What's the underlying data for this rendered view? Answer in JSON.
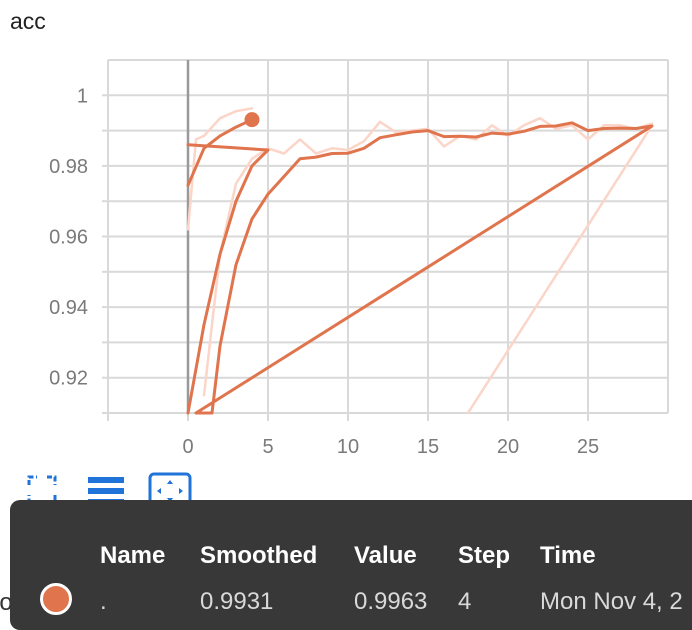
{
  "card": {
    "title": "acc"
  },
  "toolbar": {
    "fullscreen_icon": "fullscreen-icon",
    "legend_icon": "list-icon",
    "fit_icon": "fit-domain-icon"
  },
  "colors": {
    "series": "#e0744d",
    "series_faded": "#fbd5c8",
    "grid": "#d9d9d9",
    "tooltip_bg": "#383838"
  },
  "chart_data": {
    "type": "line",
    "title": "acc",
    "xlabel": "",
    "ylabel": "",
    "xlim": [
      -5,
      30
    ],
    "ylim": [
      0.91,
      1.01
    ],
    "x_ticks": [
      0,
      5,
      10,
      15,
      20,
      25
    ],
    "y_ticks": [
      0.92,
      0.94,
      0.96,
      0.98,
      1
    ],
    "grid": true,
    "series": [
      {
        "smoothed": true,
        "x": [
          0,
          1,
          2,
          3,
          4
        ],
        "y": [
          0.9745,
          0.985,
          0.9885,
          0.991,
          0.9931
        ]
      },
      {
        "smoothed": true,
        "x": [
          0,
          1,
          2,
          3,
          4,
          5,
          0
        ],
        "y": [
          0.91,
          0.935,
          0.955,
          0.97,
          0.98,
          0.9845,
          0.986
        ]
      },
      {
        "smoothed": true,
        "x": [
          0.5,
          1.5,
          2,
          3,
          4,
          5,
          6,
          7,
          8,
          9,
          10,
          11,
          12,
          13,
          14,
          15,
          16,
          17,
          18,
          19,
          20,
          21,
          22,
          23,
          24,
          25,
          26,
          27,
          28,
          29,
          0.5
        ],
        "y": [
          0.91,
          0.91,
          0.929,
          0.952,
          0.965,
          0.972,
          0.977,
          0.982,
          0.9825,
          0.9835,
          0.9836,
          0.985,
          0.988,
          0.9888,
          0.9896,
          0.99,
          0.9883,
          0.9884,
          0.9882,
          0.9893,
          0.989,
          0.9898,
          0.9912,
          0.9913,
          0.9922,
          0.99,
          0.9906,
          0.9907,
          0.9906,
          0.9913,
          0.91
        ]
      },
      {
        "smoothed": false,
        "x": [
          0,
          0.5,
          1,
          2,
          3,
          4
        ],
        "y": [
          0.962,
          0.9875,
          0.9885,
          0.9935,
          0.9955,
          0.9963
        ]
      },
      {
        "smoothed": false,
        "x": [
          1,
          2,
          3,
          4,
          5,
          6,
          7,
          8,
          9,
          10,
          11,
          12,
          13,
          14,
          15,
          16,
          17,
          18,
          19,
          20,
          21,
          22,
          23,
          24,
          25,
          26,
          27,
          28,
          29
        ],
        "y": [
          0.915,
          0.955,
          0.975,
          0.982,
          0.985,
          0.9835,
          0.9875,
          0.9835,
          0.985,
          0.9845,
          0.987,
          0.9925,
          0.9895,
          0.99,
          0.9905,
          0.9855,
          0.9885,
          0.9875,
          0.9915,
          0.9885,
          0.9915,
          0.9935,
          0.9905,
          0.9915,
          0.9875,
          0.9915,
          0.9915,
          0.9905,
          0.992
        ]
      },
      {
        "smoothed": false,
        "x": [
          17.5,
          29
        ],
        "y": [
          0.91,
          0.9915
        ]
      }
    ],
    "highlight_point": {
      "x": 4,
      "y": 0.9931
    }
  },
  "tooltip": {
    "headers": [
      "Name",
      "Smoothed",
      "Value",
      "Step",
      "Time"
    ],
    "row": {
      "name": ".",
      "smoothed": "0.9931",
      "value": "0.9963",
      "step": "4",
      "time": "Mon Nov 4, 2"
    }
  },
  "legend_partial": {
    "label": "los"
  }
}
